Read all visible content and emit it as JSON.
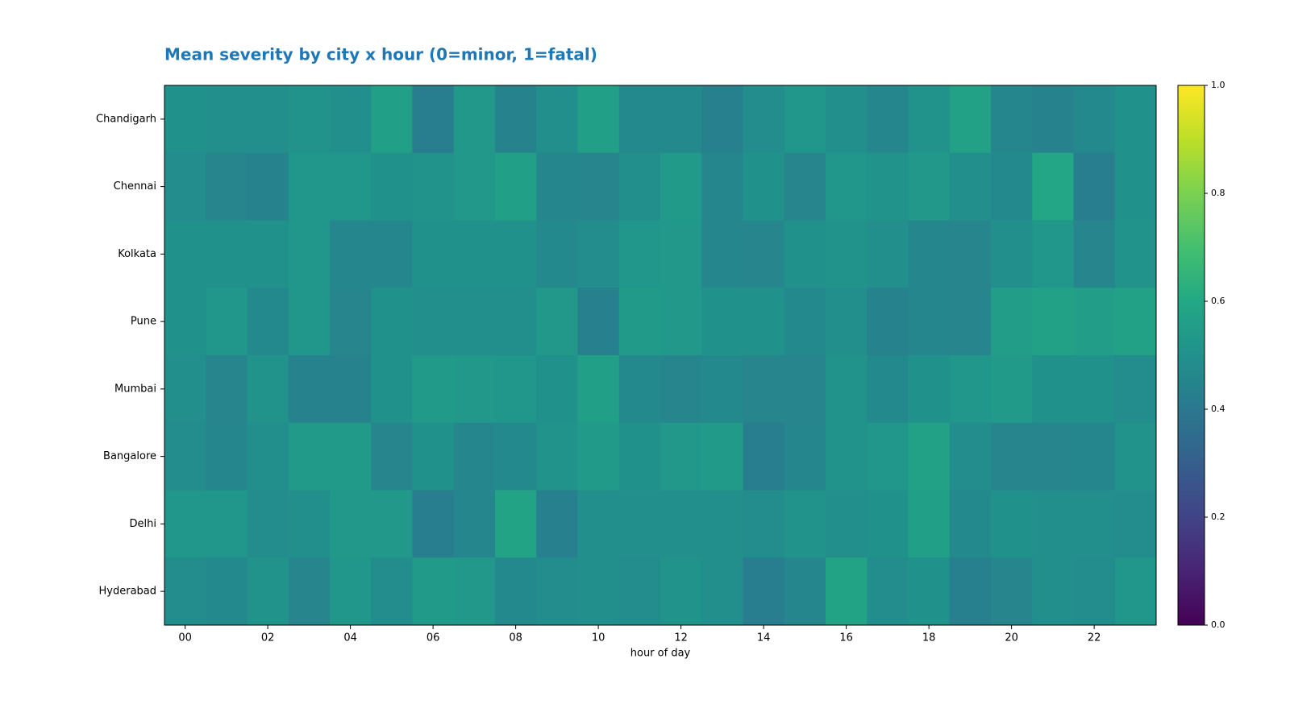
{
  "chart_data": {
    "type": "heatmap",
    "title": "Mean severity by city x hour (0=minor, 1=fatal)",
    "x_label": "hour of day",
    "categories": [
      "00",
      null,
      "02",
      null,
      "04",
      null,
      "06",
      null,
      "08",
      null,
      "10",
      null,
      "12",
      null,
      "14",
      null,
      "16",
      null,
      "18",
      null,
      "20",
      null,
      "22",
      null
    ],
    "y_categories": [
      "Chandigarh",
      "Chennai",
      "Kolkata",
      "Pune",
      "Mumbai",
      "Bangalore",
      "Delhi",
      "Hyderabad"
    ],
    "values": [
      [
        0.5,
        0.49,
        0.49,
        0.51,
        0.49,
        0.56,
        0.42,
        0.53,
        0.44,
        0.49,
        0.56,
        0.47,
        0.47,
        0.43,
        0.48,
        0.52,
        0.49,
        0.46,
        0.51,
        0.57,
        0.46,
        0.44,
        0.47,
        0.5
      ],
      [
        0.48,
        0.45,
        0.44,
        0.52,
        0.52,
        0.5,
        0.51,
        0.53,
        0.56,
        0.46,
        0.45,
        0.49,
        0.54,
        0.46,
        0.5,
        0.45,
        0.52,
        0.51,
        0.53,
        0.49,
        0.47,
        0.59,
        0.42,
        0.5
      ],
      [
        0.5,
        0.5,
        0.5,
        0.52,
        0.46,
        0.46,
        0.5,
        0.5,
        0.5,
        0.47,
        0.48,
        0.52,
        0.53,
        0.46,
        0.45,
        0.5,
        0.51,
        0.49,
        0.46,
        0.45,
        0.49,
        0.52,
        0.45,
        0.51
      ],
      [
        0.5,
        0.52,
        0.47,
        0.52,
        0.45,
        0.5,
        0.49,
        0.49,
        0.49,
        0.53,
        0.43,
        0.54,
        0.53,
        0.5,
        0.5,
        0.47,
        0.49,
        0.44,
        0.46,
        0.45,
        0.55,
        0.57,
        0.55,
        0.57
      ],
      [
        0.49,
        0.45,
        0.51,
        0.44,
        0.44,
        0.5,
        0.54,
        0.53,
        0.52,
        0.5,
        0.56,
        0.47,
        0.45,
        0.47,
        0.45,
        0.45,
        0.51,
        0.47,
        0.5,
        0.52,
        0.54,
        0.5,
        0.5,
        0.48
      ],
      [
        0.48,
        0.46,
        0.49,
        0.54,
        0.54,
        0.45,
        0.5,
        0.46,
        0.47,
        0.51,
        0.54,
        0.5,
        0.53,
        0.54,
        0.42,
        0.46,
        0.51,
        0.52,
        0.57,
        0.48,
        0.45,
        0.45,
        0.46,
        0.51
      ],
      [
        0.52,
        0.52,
        0.48,
        0.49,
        0.53,
        0.53,
        0.42,
        0.46,
        0.58,
        0.43,
        0.49,
        0.49,
        0.49,
        0.49,
        0.48,
        0.51,
        0.49,
        0.5,
        0.56,
        0.47,
        0.5,
        0.49,
        0.49,
        0.48
      ],
      [
        0.48,
        0.47,
        0.51,
        0.45,
        0.52,
        0.48,
        0.54,
        0.53,
        0.47,
        0.48,
        0.49,
        0.48,
        0.51,
        0.49,
        0.42,
        0.46,
        0.58,
        0.48,
        0.5,
        0.43,
        0.45,
        0.49,
        0.48,
        0.52
      ]
    ],
    "colormap": "viridis",
    "clim": [
      0,
      1
    ],
    "cticks": [
      {
        "value": 0,
        "label": "0.0"
      },
      {
        "value": 0.2,
        "label": "0.2"
      },
      {
        "value": 0.4,
        "label": "0.4"
      },
      {
        "value": 0.6,
        "label": "0.6"
      },
      {
        "value": 0.8,
        "label": "0.8"
      },
      {
        "value": 1,
        "label": "1.0"
      }
    ],
    "title_color": "#1f77b4"
  }
}
